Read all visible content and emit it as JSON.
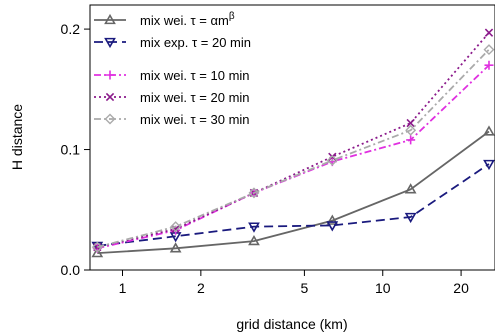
{
  "chart_data": {
    "type": "line",
    "xlabel": "grid distance (km)",
    "ylabel": "H distance",
    "xscale": "log",
    "xlim": [
      0.75,
      27
    ],
    "ylim": [
      0,
      0.22
    ],
    "xticks": [
      {
        "value": 1,
        "label": "1"
      },
      {
        "value": 2,
        "label": "2"
      },
      {
        "value": 5,
        "label": "5"
      },
      {
        "value": 10,
        "label": "10"
      },
      {
        "value": 20,
        "label": "20"
      }
    ],
    "yticks": [
      {
        "value": 0.0,
        "label": "0.0"
      },
      {
        "value": 0.1,
        "label": "0.1"
      },
      {
        "value": 0.2,
        "label": "0.2"
      }
    ],
    "x": [
      0.8,
      1.6,
      3.2,
      6.4,
      12.8,
      25.6
    ],
    "legend_position": "top-left",
    "series": [
      {
        "name": "mix wei. τ = αm^β",
        "legend": {
          "base": "mix wei. τ = αm",
          "sup": "β"
        },
        "color": "#666666",
        "dash": "",
        "marker": "triangle-up",
        "values": [
          0.014,
          0.018,
          0.024,
          0.041,
          0.067,
          0.115
        ]
      },
      {
        "name": "mix exp. τ = 20 min",
        "legend": {
          "base": "mix exp. τ = 20 min",
          "sup": ""
        },
        "color": "#1a1a7e",
        "dash": "9,5",
        "marker": "triangle-down",
        "values": [
          0.02,
          0.028,
          0.036,
          0.037,
          0.044,
          0.088
        ]
      },
      {
        "name": "mix wei. τ = 10 min",
        "legend": {
          "base": "mix wei. τ = 10 min",
          "sup": ""
        },
        "color": "#e030e0",
        "dash": "7,3,2,3",
        "marker": "plus",
        "values": [
          0.018,
          0.033,
          0.064,
          0.09,
          0.108,
          0.17
        ]
      },
      {
        "name": "mix wei. τ = 20 min",
        "legend": {
          "base": "mix wei. τ = 20 min",
          "sup": ""
        },
        "color": "#8b1a8b",
        "dash": "2,3",
        "marker": "cross",
        "values": [
          0.019,
          0.034,
          0.064,
          0.094,
          0.122,
          0.197
        ]
      },
      {
        "name": "mix wei. τ = 30 min",
        "legend": {
          "base": "mix wei. τ = 30 min",
          "sup": ""
        },
        "color": "#aaaaaa",
        "dash": "7,3,2,3",
        "marker": "diamond",
        "values": [
          0.019,
          0.036,
          0.064,
          0.091,
          0.116,
          0.183
        ]
      }
    ]
  }
}
